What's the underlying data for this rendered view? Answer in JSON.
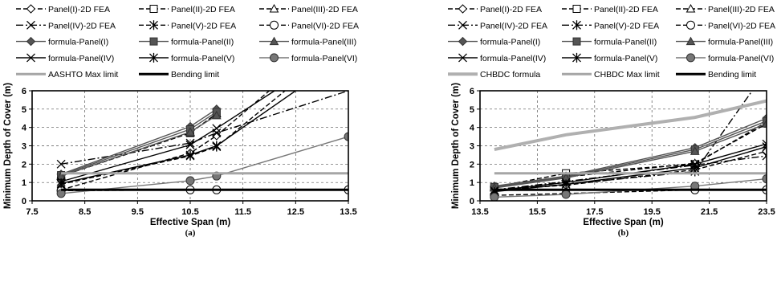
{
  "chart_data": [
    {
      "type": "line",
      "subfigure_label": "(a)",
      "xlabel": "Effective Span (m)",
      "ylabel": "Minimum Depth of Cover (m)",
      "xlim": [
        7.5,
        13.5
      ],
      "ylim": [
        0,
        6
      ],
      "xticks": [
        "7.5",
        "8.5",
        "9.5",
        "10.5",
        "11.5",
        "12.5",
        "13.5"
      ],
      "yticks": [
        "0",
        "1",
        "2",
        "3",
        "4",
        "5",
        "6"
      ],
      "grid": "dashed",
      "legend_placement": "top",
      "series": [
        {
          "name": "Panel(I)-2D FEA",
          "x": [
            8.05,
            10.5,
            11.0,
            12.0
          ],
          "y": [
            0.6,
            2.6,
            3.55,
            6.0
          ],
          "dash": "6,3",
          "marker": "diamond-open",
          "color": "#000000"
        },
        {
          "name": "Panel(II)-2D FEA",
          "x": [
            8.05,
            10.5,
            11.0
          ],
          "y": [
            1.35,
            3.7,
            4.75
          ],
          "dash": "6,3",
          "marker": "square-open",
          "color": "#000000"
        },
        {
          "name": "Panel(III)-2D FEA",
          "x": [
            8.05,
            10.5,
            11.0
          ],
          "y": [
            1.35,
            3.7,
            4.75
          ],
          "dash": "6,3",
          "marker": "triangle-open",
          "color": "#000000"
        },
        {
          "name": "Panel(IV)-2D FEA",
          "x": [
            8.05,
            10.5,
            11.0,
            13.5
          ],
          "y": [
            2.0,
            3.15,
            3.7,
            6.0
          ],
          "dash": "9,3,2,3",
          "marker": "x",
          "color": "#000000"
        },
        {
          "name": "Panel(V)-2D FEA",
          "x": [
            8.05,
            10.5,
            11.0,
            12.3
          ],
          "y": [
            0.9,
            2.45,
            2.95,
            6.0
          ],
          "dash": "6,3",
          "marker": "asterisk",
          "color": "#000000"
        },
        {
          "name": "Panel(VI)-2D FEA",
          "x": [
            8.05,
            10.5,
            11.0,
            13.5
          ],
          "y": [
            0.55,
            0.6,
            0.6,
            0.6
          ],
          "dash": "6,3",
          "marker": "circle-open",
          "color": "#000000"
        },
        {
          "name": "formula-Panel(I)",
          "x": [
            8.05,
            10.5,
            11.0
          ],
          "y": [
            1.45,
            4.05,
            5.0
          ],
          "dash": "",
          "marker": "diamond",
          "color": "#555555"
        },
        {
          "name": "formula-Panel(II)",
          "x": [
            8.05,
            10.5,
            11.0
          ],
          "y": [
            1.4,
            3.9,
            4.85
          ],
          "dash": "",
          "marker": "square",
          "color": "#555555"
        },
        {
          "name": "formula-Panel(III)",
          "x": [
            8.05,
            10.5,
            11.0
          ],
          "y": [
            1.35,
            3.75,
            4.65
          ],
          "dash": "",
          "marker": "triangle",
          "color": "#555555"
        },
        {
          "name": "formula-Panel(IV)",
          "x": [
            8.05,
            10.5,
            11.0,
            12.1
          ],
          "y": [
            1.05,
            3.05,
            3.95,
            6.0
          ],
          "dash": "",
          "marker": "x",
          "color": "#000000"
        },
        {
          "name": "formula-Panel(V)",
          "x": [
            8.05,
            10.5,
            11.0,
            12.5
          ],
          "y": [
            0.95,
            2.5,
            3.0,
            6.0
          ],
          "dash": "",
          "marker": "asterisk",
          "color": "#000000"
        },
        {
          "name": "formula-Panel(VI)",
          "x": [
            8.05,
            10.5,
            11.0,
            13.5
          ],
          "y": [
            0.4,
            1.1,
            1.35,
            3.5
          ],
          "dash": "",
          "marker": "circle",
          "color": "#777777"
        },
        {
          "name": "AASHTO Max limit",
          "x": [
            8.05,
            13.5
          ],
          "y": [
            1.5,
            1.5
          ],
          "dash": "",
          "marker": "none",
          "color": "#a6a6a6",
          "width": 3
        },
        {
          "name": "Bending limit",
          "x": [
            8.05,
            13.5
          ],
          "y": [
            0.6,
            0.6
          ],
          "dash": "",
          "marker": "none",
          "color": "#000000",
          "width": 3
        }
      ]
    },
    {
      "type": "line",
      "subfigure_label": "(b)",
      "xlabel": "Effective Span (m)",
      "ylabel": "Minimum Depth of Cover (m)",
      "xlim": [
        13.5,
        23.5
      ],
      "ylim": [
        0,
        6
      ],
      "xticks": [
        "13.5",
        "15.5",
        "17.5",
        "19.5",
        "21.5",
        "23.5"
      ],
      "yticks": [
        "0",
        "1",
        "2",
        "3",
        "4",
        "5",
        "6"
      ],
      "grid": "dashed",
      "legend_placement": "top",
      "series": [
        {
          "name": "Panel(I)-2D FEA",
          "x": [
            14.0,
            16.5,
            21.0,
            23.5
          ],
          "y": [
            0.6,
            0.85,
            1.7,
            2.7
          ],
          "dash": "6,3",
          "marker": "diamond-open",
          "color": "#000000"
        },
        {
          "name": "Panel(II)-2D FEA",
          "x": [
            14.0,
            16.5,
            21.0,
            23.5
          ],
          "y": [
            0.75,
            1.5,
            2.0,
            4.3
          ],
          "dash": "6,3",
          "marker": "square-open",
          "color": "#000000"
        },
        {
          "name": "Panel(III)-2D FEA",
          "x": [
            14.0,
            16.5,
            21.0,
            23.5
          ],
          "y": [
            0.75,
            1.3,
            2.05,
            4.2
          ],
          "dash": "6,3",
          "marker": "triangle-open",
          "color": "#000000"
        },
        {
          "name": "Panel(IV)-2D FEA",
          "x": [
            14.0,
            16.5,
            21.0,
            23.5
          ],
          "y": [
            0.6,
            1.05,
            1.95,
            2.45
          ],
          "dash": "9,3,2,3",
          "marker": "x",
          "color": "#000000"
        },
        {
          "name": "Panel(V)-2D FEA",
          "x": [
            14.0,
            16.5,
            21.0,
            23.0
          ],
          "y": [
            0.55,
            0.9,
            1.6,
            6.0
          ],
          "dash": "9,3,2,3",
          "marker": "asterisk",
          "color": "#000000"
        },
        {
          "name": "Panel(VI)-2D FEA",
          "x": [
            14.0,
            16.5,
            21.0,
            23.5
          ],
          "y": [
            0.3,
            0.4,
            0.6,
            0.6
          ],
          "dash": "6,3",
          "marker": "circle-open",
          "color": "#000000"
        },
        {
          "name": "formula-Panel(I)",
          "x": [
            14.0,
            16.5,
            21.0,
            23.5
          ],
          "y": [
            0.8,
            1.35,
            2.9,
            4.5
          ],
          "dash": "",
          "marker": "diamond",
          "color": "#555555"
        },
        {
          "name": "formula-Panel(II)",
          "x": [
            14.0,
            16.5,
            21.0,
            23.5
          ],
          "y": [
            0.75,
            1.3,
            2.8,
            4.35
          ],
          "dash": "",
          "marker": "square",
          "color": "#555555"
        },
        {
          "name": "formula-Panel(III)",
          "x": [
            14.0,
            16.5,
            21.0,
            23.5
          ],
          "y": [
            0.7,
            1.25,
            2.7,
            4.2
          ],
          "dash": "",
          "marker": "triangle",
          "color": "#555555"
        },
        {
          "name": "formula-Panel(IV)",
          "x": [
            14.0,
            16.5,
            21.0,
            23.5
          ],
          "y": [
            0.55,
            1.0,
            2.0,
            3.1
          ],
          "dash": "",
          "marker": "x",
          "color": "#000000"
        },
        {
          "name": "formula-Panel(V)",
          "x": [
            14.0,
            16.5,
            21.0,
            23.5
          ],
          "y": [
            0.5,
            0.9,
            1.8,
            2.95
          ],
          "dash": "",
          "marker": "asterisk",
          "color": "#000000"
        },
        {
          "name": "formula-Panel(VI)",
          "x": [
            14.0,
            16.5,
            21.0,
            23.5
          ],
          "y": [
            0.2,
            0.35,
            0.8,
            1.2
          ],
          "dash": "",
          "marker": "circle",
          "color": "#777777"
        },
        {
          "name": "CHBDC formula",
          "x": [
            14.0,
            16.5,
            21.0,
            23.5
          ],
          "y": [
            2.8,
            3.6,
            4.55,
            5.45
          ],
          "dash": "",
          "marker": "none",
          "color": "#b0b0b0",
          "width": 4
        },
        {
          "name": "CHBDC Max limit",
          "x": [
            14.0,
            23.5
          ],
          "y": [
            1.5,
            1.5
          ],
          "dash": "",
          "marker": "none",
          "color": "#a6a6a6",
          "width": 3
        },
        {
          "name": "Bending limit",
          "x": [
            14.0,
            23.5
          ],
          "y": [
            0.6,
            0.6
          ],
          "dash": "",
          "marker": "none",
          "color": "#000000",
          "width": 3
        }
      ]
    }
  ]
}
